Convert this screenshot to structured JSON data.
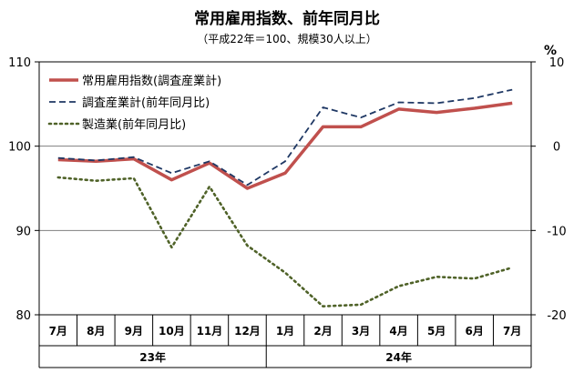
{
  "chart_data": {
    "type": "line",
    "title": "常用雇用指数、前年同月比",
    "subtitle": "（平成22年＝100、規模30人以上）",
    "categories": [
      "7月",
      "8月",
      "9月",
      "10月",
      "11月",
      "12月",
      "1月",
      "2月",
      "3月",
      "4月",
      "5月",
      "6月",
      "7月"
    ],
    "year_groups": [
      {
        "label": "23年",
        "count": 6
      },
      {
        "label": "24年",
        "count": 7
      }
    ],
    "left_axis": {
      "ylim": [
        80,
        110
      ],
      "ticks": [
        "80",
        "90",
        "100",
        "110"
      ]
    },
    "right_axis": {
      "unit": "%",
      "ylim": [
        -20,
        10
      ],
      "ticks": [
        "-20",
        "-10",
        "0",
        "10"
      ]
    },
    "grid": true,
    "legend_position": "top-left",
    "series": [
      {
        "name": "常用雇用指数(調査産業計)",
        "axis": "left",
        "color": "#c0504d",
        "style": "solid",
        "values": [
          98.4,
          98.2,
          98.5,
          96.0,
          98.0,
          95.0,
          96.8,
          102.3,
          102.3,
          104.4,
          104.0,
          104.5,
          105.1
        ]
      },
      {
        "name": "調査産業計(前年同月比)",
        "axis": "right",
        "color": "#1f3864",
        "style": "dashed",
        "values": [
          -1.4,
          -1.7,
          -1.3,
          -3.2,
          -1.8,
          -4.6,
          -1.8,
          4.6,
          3.4,
          5.2,
          5.1,
          5.7,
          6.7
        ]
      },
      {
        "name": "製造業(前年同月比)",
        "axis": "right",
        "color": "#4f6228",
        "style": "dotted",
        "values": [
          -3.7,
          -4.1,
          -3.8,
          -12.0,
          -4.8,
          -11.8,
          -15.0,
          -19.0,
          -18.8,
          -16.6,
          -15.5,
          -15.7,
          -14.4
        ]
      }
    ]
  }
}
